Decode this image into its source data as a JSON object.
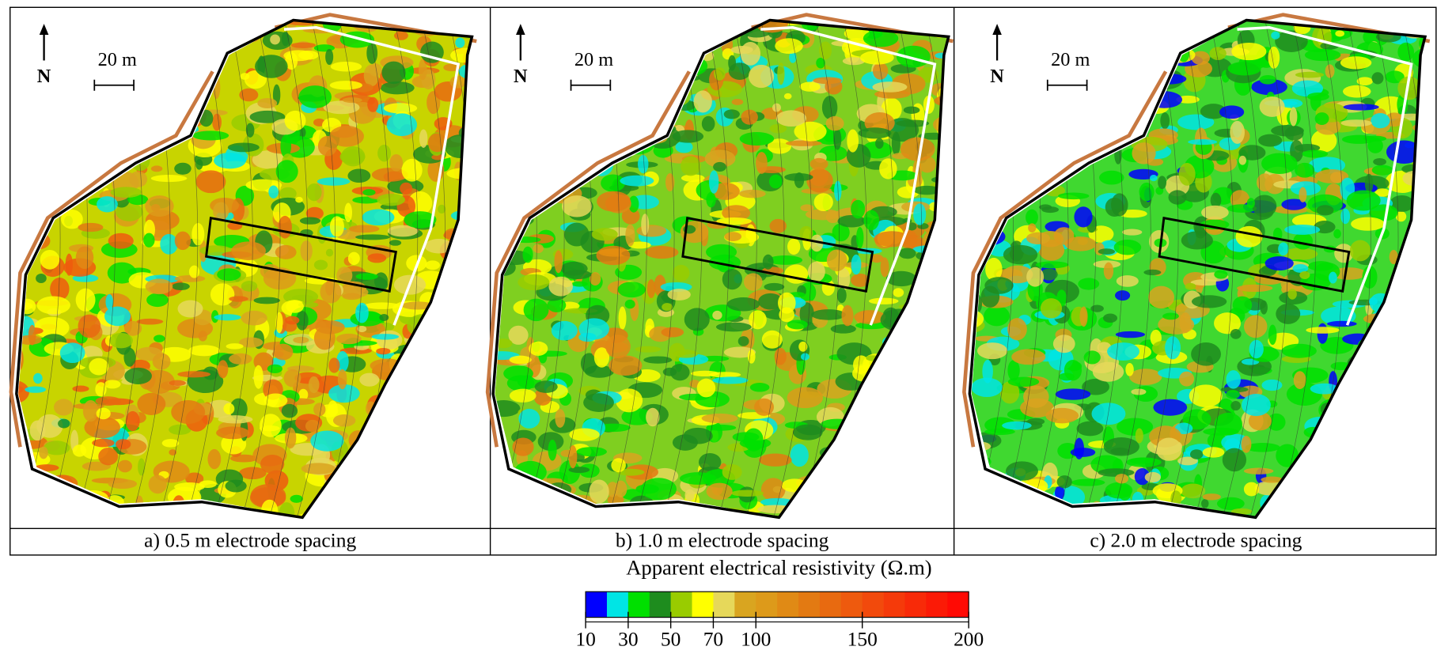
{
  "panels": [
    {
      "caption": "a) 0.5 m electrode spacing",
      "north": "N",
      "scale": "20 m"
    },
    {
      "caption": "b) 1.0 m electrode spacing",
      "north": "N",
      "scale": "20 m"
    },
    {
      "caption": "c) 2.0 m electrode spacing",
      "north": "N",
      "scale": "20 m"
    }
  ],
  "colorbar": {
    "title": "Apparent electrical resistivity (Ω.m)",
    "colors": [
      "#0000ff",
      "#00e5e5",
      "#00e000",
      "#1e8c1e",
      "#99cc00",
      "#ffff00",
      "#e6d85a",
      "#d9a520",
      "#dd9a1a",
      "#e08a15",
      "#e37a12",
      "#e86a10",
      "#ee5a0e",
      "#f24a0c",
      "#f53a0a",
      "#f82a08",
      "#fb1a06",
      "#ff0a04"
    ],
    "bounds": [
      10,
      20,
      30,
      40,
      50,
      60,
      70,
      80,
      100,
      110,
      120,
      130,
      140,
      150,
      160,
      170,
      180,
      190,
      200
    ],
    "ticks": [
      10,
      30,
      50,
      70,
      100,
      150,
      200
    ]
  }
}
